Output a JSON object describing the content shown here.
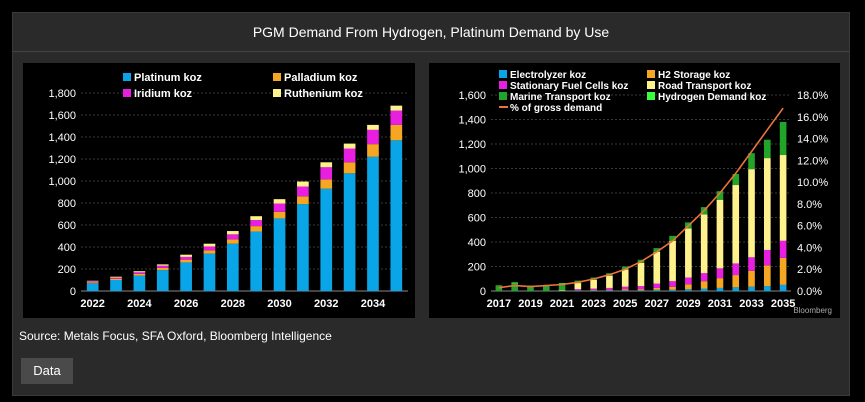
{
  "page": {
    "title": "PGM Demand From Hydrogen, Platinum Demand by Use",
    "source": "Source: Metals Focus, SFA Oxford, Bloomberg Intelligence",
    "data_button": "Data",
    "watermark": "Bloomberg"
  },
  "chart_data": [
    {
      "type": "bar",
      "stacked": true,
      "title": "",
      "xlabel": "",
      "ylabel": "",
      "categories": [
        "2022",
        "2023",
        "2024",
        "2025",
        "2026",
        "2027",
        "2028",
        "2029",
        "2030",
        "2031",
        "2032",
        "2033",
        "2034",
        "2035"
      ],
      "xticks": [
        "2022",
        "2024",
        "2026",
        "2028",
        "2030",
        "2032",
        "2034"
      ],
      "ylim": [
        0,
        1800
      ],
      "yticks": [
        "0",
        "200",
        "400",
        "600",
        "800",
        "1,000",
        "1,200",
        "1,400",
        "1,600",
        "1,800"
      ],
      "grid": true,
      "legend_position": "top",
      "series": [
        {
          "name": "Platinum koz",
          "color": "#0aa5e6",
          "values": [
            70,
            100,
            140,
            190,
            260,
            340,
            430,
            540,
            660,
            790,
            930,
            1070,
            1220,
            1370
          ]
        },
        {
          "name": "Palladium koz",
          "color": "#f5a623",
          "values": [
            10,
            12,
            15,
            20,
            25,
            30,
            40,
            50,
            60,
            70,
            85,
            100,
            115,
            140
          ]
        },
        {
          "name": "Iridium koz",
          "color": "#e81ee0",
          "values": [
            8,
            10,
            15,
            20,
            25,
            35,
            45,
            55,
            75,
            90,
            110,
            125,
            130,
            130
          ]
        },
        {
          "name": "Ruthenium koz",
          "color": "#fff28c",
          "values": [
            5,
            8,
            10,
            12,
            20,
            25,
            30,
            35,
            40,
            45,
            45,
            45,
            45,
            45
          ]
        }
      ]
    },
    {
      "type": "bar",
      "stacked": true,
      "title": "",
      "xlabel": "",
      "ylabel": "",
      "categories": [
        "2017",
        "2018",
        "2019",
        "2020",
        "2021",
        "2022",
        "2023",
        "2024",
        "2025",
        "2026",
        "2027",
        "2028",
        "2029",
        "2030",
        "2031",
        "2032",
        "2033",
        "2034",
        "2035"
      ],
      "xticks": [
        "2017",
        "2019",
        "2021",
        "2023",
        "2025",
        "2027",
        "2029",
        "2031",
        "2033",
        "2035"
      ],
      "ylim": [
        0,
        1600
      ],
      "yticks": [
        "0",
        "200",
        "400",
        "600",
        "800",
        "1,000",
        "1,200",
        "1,400",
        "1,600"
      ],
      "y2lim": [
        0,
        18
      ],
      "y2ticks": [
        "0.0%",
        "2.0%",
        "4.0%",
        "6.0%",
        "8.0%",
        "10.0%",
        "12.0%",
        "14.0%",
        "16.0%",
        "18.0%"
      ],
      "grid": true,
      "legend_position": "top",
      "series": [
        {
          "name": "Electrolyzer koz",
          "color": "#0aa5e6",
          "values": [
            0,
            0,
            0,
            0,
            0,
            5,
            5,
            5,
            5,
            5,
            10,
            10,
            15,
            20,
            25,
            30,
            35,
            40,
            50
          ]
        },
        {
          "name": "H2 Storage koz",
          "color": "#f5a623",
          "values": [
            0,
            0,
            0,
            0,
            0,
            0,
            5,
            5,
            10,
            10,
            15,
            25,
            40,
            60,
            80,
            100,
            130,
            170,
            220
          ]
        },
        {
          "name": "Stationary Fuel Cells koz",
          "color": "#e81ee0",
          "values": [
            0,
            0,
            0,
            0,
            0,
            10,
            10,
            15,
            20,
            25,
            35,
            45,
            55,
            65,
            80,
            95,
            110,
            125,
            140
          ]
        },
        {
          "name": "Road Transport koz",
          "color": "#fff28c",
          "values": [
            0,
            0,
            0,
            0,
            5,
            50,
            70,
            100,
            140,
            190,
            260,
            330,
            400,
            480,
            560,
            640,
            720,
            750,
            700
          ]
        },
        {
          "name": "Marine Transport koz",
          "color": "#22a32a",
          "values": [
            40,
            60,
            45,
            50,
            55,
            20,
            20,
            20,
            25,
            25,
            30,
            40,
            50,
            60,
            70,
            90,
            130,
            150,
            270
          ]
        },
        {
          "name": "Hydrogen Demand koz",
          "color": "#39ff3d",
          "values": [
            5,
            10,
            0,
            0,
            5,
            0,
            0,
            0,
            0,
            0,
            0,
            0,
            0,
            0,
            0,
            0,
            0,
            0,
            0
          ]
        },
        {
          "name": "% of gross demand",
          "type": "line",
          "axis": "right",
          "color": "#e8743a",
          "values": [
            0.3,
            0.5,
            0.4,
            0.5,
            0.6,
            0.8,
            1.1,
            1.5,
            2.0,
            2.7,
            3.6,
            4.6,
            6.0,
            7.4,
            9.0,
            10.8,
            12.8,
            14.8,
            16.8
          ]
        }
      ]
    }
  ]
}
